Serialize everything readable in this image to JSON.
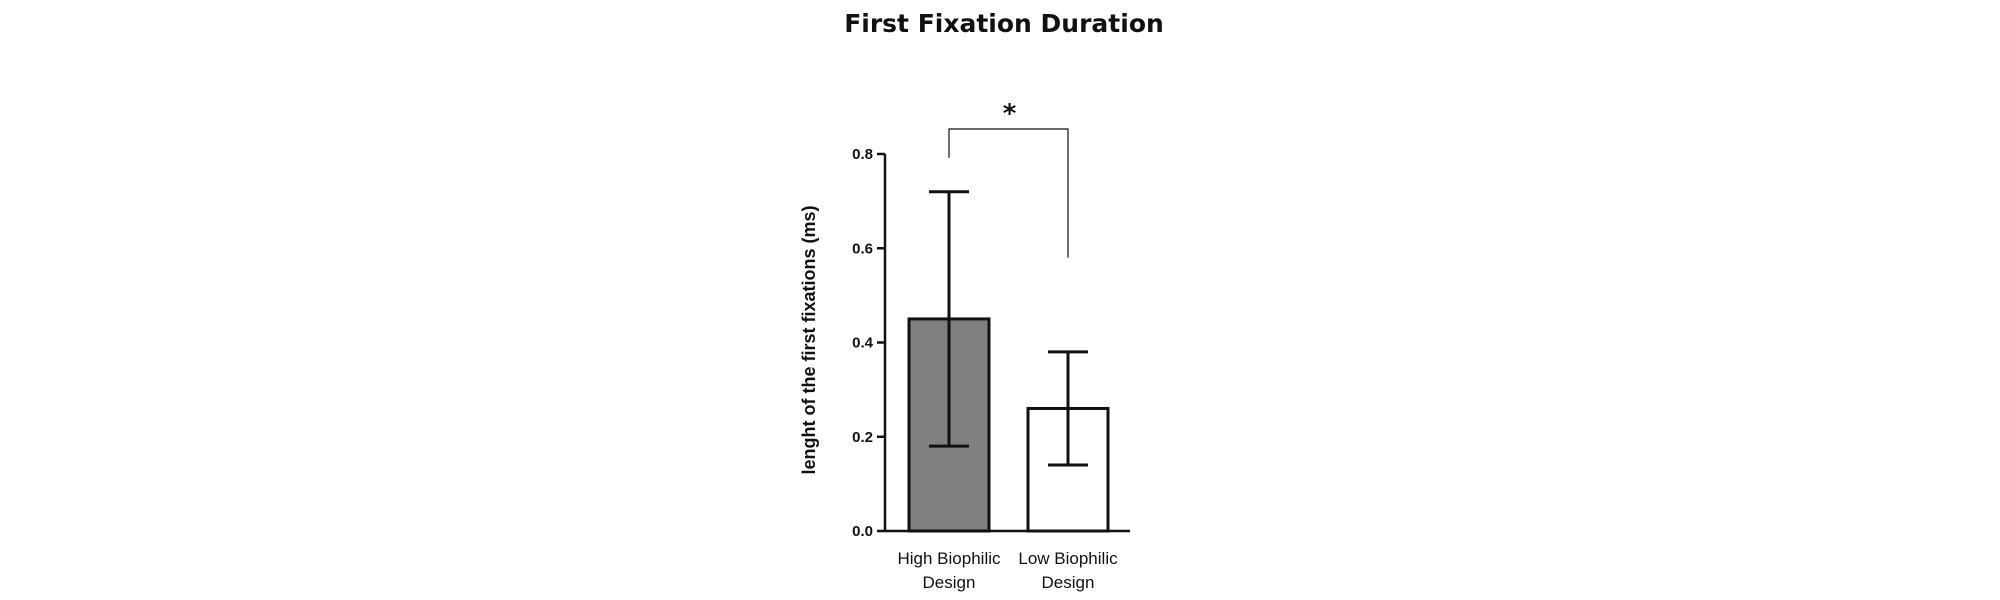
{
  "chart_data": {
    "type": "bar",
    "title": "First Fixation Duration",
    "xlabel": "",
    "ylabel": "lenght of the first fixations (ms)",
    "ylim": [
      0,
      0.8
    ],
    "yticks": [
      "0.0",
      "0.2",
      "0.4",
      "0.6",
      "0.8"
    ],
    "categories": [
      {
        "line1": "High Biophilic",
        "line2": "Design"
      },
      {
        "line1": "Low Biophilic",
        "line2": "Design"
      }
    ],
    "values": [
      0.45,
      0.26
    ],
    "error_upper": [
      0.72,
      0.38
    ],
    "error_lower": [
      0.18,
      0.14
    ],
    "bar_colors": [
      "#808080",
      "#ffffff"
    ],
    "significance": {
      "label": "*",
      "between": [
        0,
        1
      ]
    },
    "grid": false
  }
}
